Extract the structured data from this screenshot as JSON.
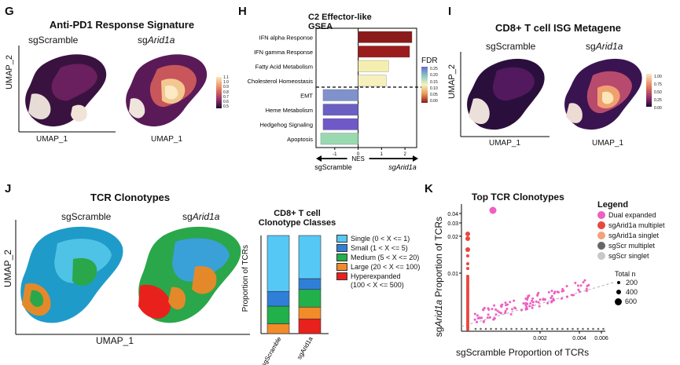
{
  "panel_g": {
    "letter": "G",
    "title": "Anti-PD1 Response Signature",
    "sub_left": "sgScramble",
    "sub_right_prefix": "sg",
    "sub_right_gene": "Arid1a",
    "x_label": "UMAP_1",
    "y_label": "UMAP_2",
    "scale_ticks": [
      "1.1",
      "1.0",
      "0.9",
      "0.8",
      "0.7",
      "0.6",
      "0.5"
    ]
  },
  "panel_h": {
    "letter": "H",
    "title": "C2 Effector-like",
    "title2": "GSEA",
    "legend_title": "FDR",
    "legend_ticks": [
      "0.25",
      "0.20",
      "0.15",
      "0.10",
      "0.05",
      "0.00"
    ],
    "x_label": "NES",
    "left_arrow_label": "sgScramble",
    "right_arrow_label": "sgArid1a",
    "x_ticks": [
      "-1",
      "0",
      "1",
      "2"
    ]
  },
  "panel_i": {
    "letter": "I",
    "title": "CD8+ T cell ISG Metagene",
    "sub_left": "sgScramble",
    "sub_right_prefix": "sg",
    "sub_right_gene": "Arid1a",
    "x_label": "UMAP_1",
    "y_label": "UMAP_2",
    "scale_ticks": [
      "1.00",
      "0.75",
      "0.50",
      "0.25",
      "0.00"
    ]
  },
  "panel_j": {
    "letter": "J",
    "title": "TCR Clonotypes",
    "sub_left": "sgScramble",
    "sub_right_prefix": "sg",
    "sub_right_gene": "Arid1a",
    "x_label": "UMAP_1",
    "y_label": "UMAP_2",
    "bar_title": "CD8+ T cell",
    "bar_title2": "Clonotype Classes",
    "bar_ylabel": "Proportion of TCRs",
    "legend": [
      {
        "label": "Single (0 < X <= 1)",
        "color": "#56c8f5"
      },
      {
        "label": "Small (1 < X <= 5)",
        "color": "#2f7fd8"
      },
      {
        "label": "Medium (5 < X <= 20)",
        "color": "#22b04b"
      },
      {
        "label": "Large (20 < X <= 100)",
        "color": "#f28b2a"
      },
      {
        "label": "Hyperexpanded",
        "color": "#e8211d"
      }
    ],
    "legend_last_line2": "(100 < X <= 500)"
  },
  "panel_k": {
    "letter": "K",
    "title": "Top TCR Clonotypes",
    "x_label": "sgScramble Proportion of TCRs",
    "y_label_prefix": "sg",
    "y_label_gene": "Arid1a",
    "y_label_suffix": " Proportion of TCRs",
    "legend_title": "Legend",
    "legend": [
      {
        "label": "Dual expanded",
        "color": "#ee5fc1"
      },
      {
        "label": "sgArid1a multiplet",
        "color": "#e8473f"
      },
      {
        "label": "sgArid1a singlet",
        "color": "#f2a37a"
      },
      {
        "label": "sgScr multiplet",
        "color": "#666666"
      },
      {
        "label": "sgScr singlet",
        "color": "#c8c8c8"
      }
    ],
    "size_title": "Total n",
    "size_labels": [
      "200",
      "400",
      "600"
    ]
  },
  "chart_data": [
    {
      "type": "bar",
      "id": "gsea",
      "title": "C2 Effector-like GSEA",
      "xlabel": "NES",
      "categories": [
        "IFN alpha Response",
        "IFN gamma Response",
        "Fatty Acid Metabolism",
        "Cholesterol Homeostasis",
        "EMT",
        "Heme Metabolism",
        "Hedgehog Signaling",
        "Apoptosis"
      ],
      "values": [
        2.3,
        2.2,
        1.3,
        1.2,
        -1.5,
        -1.5,
        -1.5,
        -1.6
      ],
      "colors": [
        "#8b1a1a",
        "#9b1c1c",
        "#f4efb0",
        "#f6f1bc",
        "#7f92cc",
        "#6b5fc4",
        "#6f58c7",
        "#9ad9b0"
      ],
      "xlim": [
        -1.8,
        2.5
      ]
    },
    {
      "type": "bar",
      "id": "clonotype_classes",
      "title": "CD8+ T cell Clonotype Classes",
      "ylabel": "Proportion of TCRs",
      "categories": [
        "sgScramble",
        "sgArid1a"
      ],
      "series": [
        {
          "name": "Hyperexpanded (100 < X <= 500)",
          "values": [
            0.0,
            0.15
          ]
        },
        {
          "name": "Large (20 < X <= 100)",
          "values": [
            0.1,
            0.12
          ]
        },
        {
          "name": "Medium (5 < X <= 20)",
          "values": [
            0.18,
            0.18
          ]
        },
        {
          "name": "Small (1 < X <= 5)",
          "values": [
            0.15,
            0.11
          ]
        },
        {
          "name": "Single (0 < X <= 1)",
          "values": [
            0.57,
            0.44
          ]
        }
      ],
      "ylim": [
        0,
        1
      ]
    },
    {
      "type": "scatter",
      "id": "top_clonotypes",
      "title": "Top TCR Clonotypes",
      "xlabel": "sgScramble Proportion of TCRs",
      "ylabel": "sgArid1a Proportion of TCRs",
      "x_ticks": [
        "0.002",
        "0.004",
        "0.006"
      ],
      "y_ticks": [
        "0.01",
        "0.02",
        "0.03",
        "0.04"
      ]
    }
  ]
}
